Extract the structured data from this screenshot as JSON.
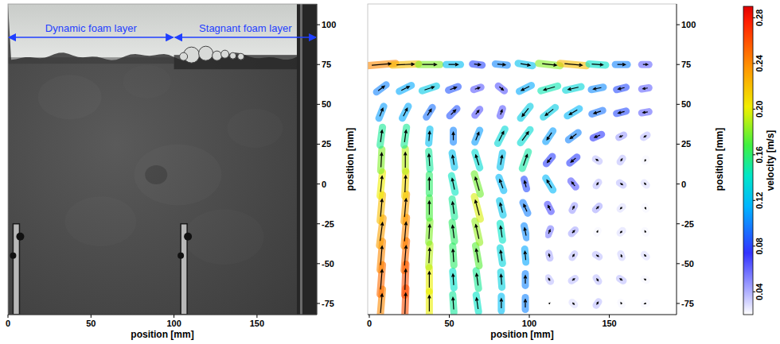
{
  "chart_data": [
    {
      "type": "image",
      "xlabel": "position [mm]",
      "ylabel": "position [mm]",
      "xlim": [
        0,
        186
      ],
      "xticks": [
        0,
        50,
        100,
        150
      ],
      "ylim": [
        -82,
        113
      ],
      "yticks": [
        -75,
        -50,
        -25,
        0,
        25,
        50,
        75,
        100
      ],
      "surface_level": 80,
      "wall_x": 174,
      "baffles_x": [
        5,
        106
      ],
      "baffle_top": -25,
      "annotations": [
        {
          "text": "Dynamic foam layer",
          "x": [
            0,
            100
          ],
          "y": 92
        },
        {
          "text": "Stagnant foam layer",
          "x": [
            100,
            186
          ],
          "y": 92
        }
      ]
    },
    {
      "type": "vector_field",
      "xlabel": "position [mm]",
      "ylabel": "position [mm]",
      "xlim": [
        -1,
        192
      ],
      "xticks": [
        0,
        50,
        100,
        150
      ],
      "ylim": [
        -82,
        113
      ],
      "yticks": [
        -75,
        -50,
        -25,
        0,
        25,
        50,
        75,
        100
      ],
      "masked_region": {
        "x": [
          100,
          110
        ],
        "y": [
          -82,
          -25
        ]
      },
      "vectors": {
        "x": [
          7.5,
          22.5,
          37.5,
          52.5,
          67.5,
          82.5,
          97.5,
          112.5,
          127.5,
          142.5,
          157.5,
          172.5
        ],
        "y": [
          -75,
          -60,
          -45,
          -30,
          -15,
          0,
          15,
          30,
          45,
          60,
          75
        ],
        "u": [
          [
            0.02,
            0.01,
            0,
            -0.01,
            -0.02,
            0,
            0,
            0.01,
            0.02,
            0.02,
            -0.01,
            -0.02
          ],
          [
            0.02,
            0.01,
            0,
            -0.01,
            -0.02,
            -0.01,
            0,
            -0.02,
            0.03,
            0.02,
            -0.03,
            -0.02
          ],
          [
            0.02,
            0.02,
            0.01,
            -0.01,
            -0.03,
            -0.02,
            -0.01,
            -0.01,
            0.02,
            0.03,
            0.01,
            -0.02
          ],
          [
            0.03,
            0.02,
            0.01,
            -0.02,
            -0.04,
            -0.02,
            -0.02,
            0.02,
            0.03,
            0.01,
            -0.02,
            -0.01
          ],
          [
            0.02,
            0.02,
            0,
            -0.02,
            -0.05,
            -0.03,
            -0.04,
            -0.03,
            0.02,
            0.03,
            -0.02,
            0.01
          ],
          [
            0.02,
            0.01,
            0,
            -0.03,
            -0.05,
            -0.04,
            -0.02,
            -0.06,
            -0.04,
            0.02,
            0.03,
            -0.02
          ],
          [
            0.01,
            0,
            -0.01,
            -0.02,
            -0.04,
            0.02,
            0.05,
            -0.05,
            -0.06,
            -0.03,
            0.02,
            -0.01
          ],
          [
            0.02,
            0.02,
            0.01,
            0,
            0.04,
            0.06,
            0.08,
            -0.06,
            -0.08,
            -0.07,
            -0.04,
            -0.03
          ],
          [
            0.04,
            0.05,
            0.05,
            0.06,
            0.04,
            0.02,
            -0.08,
            -0.1,
            -0.1,
            -0.09,
            -0.08,
            -0.06
          ],
          [
            0.08,
            0.1,
            0.12,
            0.08,
            0.06,
            0.05,
            -0.1,
            -0.14,
            -0.13,
            -0.1,
            -0.08,
            -0.06
          ],
          [
            0.24,
            0.22,
            0.18,
            0.12,
            0.08,
            0.1,
            0.12,
            0.18,
            0.22,
            0.14,
            0.1,
            0.06
          ]
        ],
        "v": [
          [
            0.24,
            0.26,
            0.2,
            0.15,
            0.14,
            0.12,
            0.1,
            0.01,
            -0.02,
            0.03,
            0.02,
            -0.01
          ],
          [
            0.25,
            0.26,
            0.2,
            0.14,
            0.15,
            0.13,
            0.1,
            0.03,
            0.02,
            -0.03,
            0.02,
            0.01
          ],
          [
            0.24,
            0.25,
            0.19,
            0.16,
            0.17,
            0.13,
            0.11,
            0.04,
            0.03,
            -0.02,
            -0.03,
            0.02
          ],
          [
            0.23,
            0.24,
            0.18,
            0.16,
            0.18,
            0.14,
            0.1,
            0.05,
            0.03,
            0.02,
            -0.02,
            0.02
          ],
          [
            0.22,
            0.23,
            0.17,
            0.15,
            0.19,
            0.12,
            0.09,
            0.06,
            0.04,
            0.03,
            -0.02,
            -0.02
          ],
          [
            0.2,
            0.21,
            0.16,
            0.14,
            0.17,
            0.11,
            0.08,
            0.1,
            0.05,
            0.03,
            -0.02,
            0.02
          ],
          [
            0.18,
            0.19,
            0.15,
            0.12,
            0.13,
            0.12,
            0.14,
            -0.06,
            -0.05,
            0.02,
            0.03,
            -0.02
          ],
          [
            0.15,
            0.15,
            0.12,
            0.1,
            0.1,
            0.12,
            0.11,
            -0.09,
            -0.06,
            -0.03,
            -0.02,
            -0.02
          ],
          [
            0.1,
            0.1,
            0.08,
            0.06,
            0.05,
            0.06,
            -0.1,
            -0.08,
            -0.06,
            -0.03,
            -0.02,
            -0.01
          ],
          [
            0.06,
            0.05,
            0.04,
            0.03,
            0.02,
            -0.04,
            -0.05,
            -0.04,
            -0.03,
            -0.02,
            -0.02,
            -0.01
          ],
          [
            0.02,
            0.01,
            0,
            0,
            -0.01,
            -0.01,
            -0.02,
            -0.02,
            -0.02,
            -0.01,
            0,
            0
          ]
        ]
      },
      "colorbar": {
        "label": "velocity [m/s]",
        "range": [
          0.02,
          0.29
        ],
        "ticks": [
          0.04,
          0.08,
          0.12,
          0.16,
          {
            "value": 0.2,
            "label": "0.20"
          },
          0.24,
          0.28
        ]
      }
    }
  ]
}
